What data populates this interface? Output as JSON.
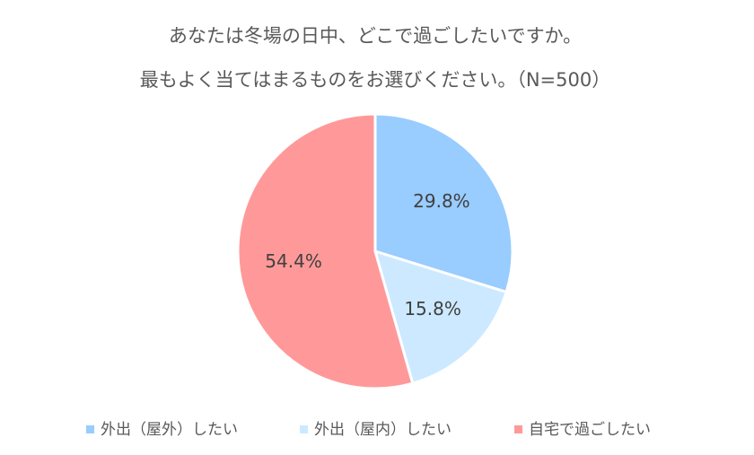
{
  "chart_data": {
    "type": "pie",
    "title": "あなたは冬場の日中、どこで過ごしたいですか。",
    "subtitle": "最もよく当てはまるものをお選びください。（N=500）",
    "categories": [
      "外出（屋外）したい",
      "外出（屋内）したい",
      "自宅で過ごしたい"
    ],
    "values": [
      29.8,
      15.8,
      54.4
    ],
    "value_labels": [
      "29.8%",
      "15.8%",
      "54.4%"
    ],
    "colors": [
      "#99ccff",
      "#cce9ff",
      "#ff9999"
    ]
  }
}
